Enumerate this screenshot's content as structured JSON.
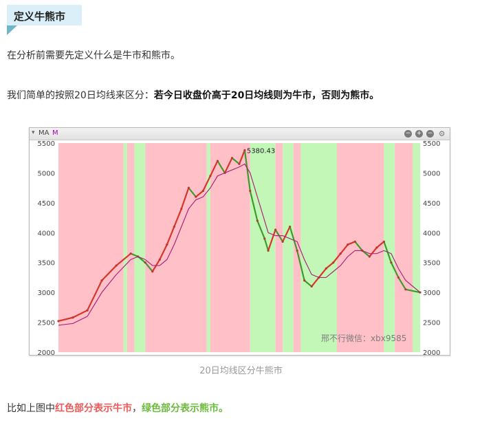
{
  "heading": {
    "title": "定义牛熊市"
  },
  "paragraphs": {
    "p1": "在分析前需要先定义什么是牛市和熊市。",
    "p2_normal": "我们简单的按照20日均线来区分：",
    "p2_bold": "若今日收盘价高于20日均线则为牛市，否则为熊市。",
    "p3_normal_start": "比如上图中",
    "p3_red": "红色部分表示牛市",
    "p3_comma": "，",
    "p3_green": "绿色部分表示熊市。"
  },
  "chart_header": {
    "indicator": "MA",
    "mode": "M",
    "caret": "▾",
    "controls": [
      "−",
      "+",
      "−",
      "⚙"
    ]
  },
  "caption": "20日均线区分牛熊市",
  "colors": {
    "bull": "#ffc0c8",
    "bear": "#c2f7b8",
    "red_text": "#ee5a5a",
    "green_text": "#6cbb3c",
    "ma_line": "#a8287a"
  },
  "chart_data": {
    "type": "line",
    "title": "",
    "xlabel": "",
    "ylabel": "",
    "ylim": [
      2000,
      5500
    ],
    "yticks": [
      2000,
      2500,
      3000,
      3500,
      4000,
      4500,
      5000,
      5500
    ],
    "annotation": {
      "label": "5380.43",
      "value": 5380.43,
      "x": 0.515
    },
    "watermark": "邢不行微信：xbx9585",
    "x": [
      0.0,
      0.04,
      0.08,
      0.12,
      0.16,
      0.2,
      0.22,
      0.24,
      0.26,
      0.28,
      0.3,
      0.32,
      0.34,
      0.36,
      0.38,
      0.4,
      0.42,
      0.44,
      0.46,
      0.48,
      0.5,
      0.515,
      0.53,
      0.55,
      0.57,
      0.58,
      0.6,
      0.62,
      0.64,
      0.66,
      0.68,
      0.7,
      0.72,
      0.74,
      0.76,
      0.78,
      0.8,
      0.82,
      0.84,
      0.86,
      0.88,
      0.9,
      0.92,
      0.94,
      0.96,
      1.0
    ],
    "series": [
      {
        "values": [
          2520,
          2580,
          2700,
          3200,
          3450,
          3650,
          3600,
          3500,
          3350,
          3550,
          3800,
          4100,
          4400,
          4750,
          4600,
          4700,
          4950,
          5200,
          5000,
          5250,
          5150,
          5380,
          4700,
          4200,
          3900,
          3700,
          4050,
          3850,
          4100,
          3700,
          3200,
          3100,
          3250,
          3400,
          3500,
          3650,
          3800,
          3850,
          3700,
          3600,
          3750,
          3850,
          3500,
          3250,
          3050,
          3000
        ]
      },
      {
        "values": [
          2450,
          2480,
          2600,
          3000,
          3300,
          3550,
          3600,
          3550,
          3450,
          3450,
          3550,
          3800,
          4100,
          4400,
          4550,
          4600,
          4750,
          4950,
          5000,
          5050,
          5100,
          5150,
          5000,
          4600,
          4200,
          4000,
          3950,
          3950,
          3900,
          3850,
          3550,
          3300,
          3250,
          3250,
          3350,
          3450,
          3600,
          3700,
          3700,
          3650,
          3650,
          3700,
          3650,
          3400,
          3200,
          3000
        ]
      }
    ],
    "regions": [
      {
        "from": 0.0,
        "to": 0.18,
        "state": "bull"
      },
      {
        "from": 0.18,
        "to": 0.19,
        "state": "bear"
      },
      {
        "from": 0.19,
        "to": 0.21,
        "state": "bull"
      },
      {
        "from": 0.21,
        "to": 0.24,
        "state": "bear"
      },
      {
        "from": 0.24,
        "to": 0.41,
        "state": "bull"
      },
      {
        "from": 0.41,
        "to": 0.42,
        "state": "bear"
      },
      {
        "from": 0.42,
        "to": 0.53,
        "state": "bull"
      },
      {
        "from": 0.53,
        "to": 0.6,
        "state": "bear"
      },
      {
        "from": 0.6,
        "to": 0.62,
        "state": "bull"
      },
      {
        "from": 0.62,
        "to": 0.65,
        "state": "bear"
      },
      {
        "from": 0.65,
        "to": 0.67,
        "state": "bull"
      },
      {
        "from": 0.67,
        "to": 0.77,
        "state": "bear"
      },
      {
        "from": 0.77,
        "to": 0.9,
        "state": "bull"
      },
      {
        "from": 0.9,
        "to": 0.93,
        "state": "bear"
      },
      {
        "from": 0.93,
        "to": 0.98,
        "state": "bull"
      },
      {
        "from": 0.98,
        "to": 1.0,
        "state": "bear"
      }
    ]
  }
}
